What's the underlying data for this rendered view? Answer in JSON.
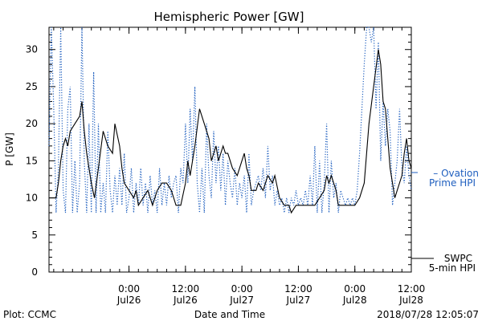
{
  "chart_data": {
    "type": "line",
    "title": "Hemispheric Power [GW]",
    "ylabel": "P [GW]",
    "xlabel": "Date and Time",
    "ylim": [
      0,
      33
    ],
    "yticks": [
      0,
      5,
      10,
      15,
      20,
      25,
      30
    ],
    "xlim": [
      "2018-07-25T07:00",
      "2018-07-28T12:00"
    ],
    "xticks": [
      {
        "t": "2018-07-26T00:00",
        "line1": "0:00",
        "line2": "Jul26"
      },
      {
        "t": "2018-07-26T12:00",
        "line1": "12:00",
        "line2": "Jul26"
      },
      {
        "t": "2018-07-27T00:00",
        "line1": "0:00",
        "line2": "Jul27"
      },
      {
        "t": "2018-07-27T12:00",
        "line1": "12:00",
        "line2": "Jul27"
      },
      {
        "t": "2018-07-28T00:00",
        "line1": "0:00",
        "line2": "Jul28"
      },
      {
        "t": "2018-07-28T12:00",
        "line1": "12:00",
        "line2": "Jul28"
      }
    ],
    "grid": false,
    "series": [
      {
        "name": "SWPC 5-min HPI",
        "label_lines": [
          "SWPC",
          "5-min HPI"
        ],
        "color": "#000000",
        "style": "solid",
        "points": [
          [
            "2018-07-25T07:00",
            10
          ],
          [
            "2018-07-25T08:30",
            10
          ],
          [
            "2018-07-25T09:00",
            12
          ],
          [
            "2018-07-25T09:30",
            15
          ],
          [
            "2018-07-25T10:00",
            17
          ],
          [
            "2018-07-25T10:30",
            18
          ],
          [
            "2018-07-25T11:00",
            17
          ],
          [
            "2018-07-25T11:30",
            19
          ],
          [
            "2018-07-25T12:30",
            20
          ],
          [
            "2018-07-25T13:30",
            21
          ],
          [
            "2018-07-25T14:00",
            23
          ],
          [
            "2018-07-25T14:30",
            19
          ],
          [
            "2018-07-25T15:00",
            16
          ],
          [
            "2018-07-25T16:00",
            12
          ],
          [
            "2018-07-25T16:40",
            10
          ],
          [
            "2018-07-25T17:30",
            14
          ],
          [
            "2018-07-25T18:30",
            19
          ],
          [
            "2018-07-25T19:30",
            17
          ],
          [
            "2018-07-25T20:30",
            16
          ],
          [
            "2018-07-25T21:00",
            20
          ],
          [
            "2018-07-25T22:00",
            17
          ],
          [
            "2018-07-25T22:30",
            14
          ],
          [
            "2018-07-25T23:00",
            12
          ],
          [
            "2018-07-26T00:00",
            11
          ],
          [
            "2018-07-26T01:00",
            10
          ],
          [
            "2018-07-26T01:30",
            11
          ],
          [
            "2018-07-26T02:00",
            9
          ],
          [
            "2018-07-26T03:00",
            10
          ],
          [
            "2018-07-26T04:00",
            11
          ],
          [
            "2018-07-26T05:00",
            9
          ],
          [
            "2018-07-26T06:00",
            11
          ],
          [
            "2018-07-26T07:00",
            12
          ],
          [
            "2018-07-26T08:00",
            12
          ],
          [
            "2018-07-26T09:00",
            11
          ],
          [
            "2018-07-26T10:00",
            9
          ],
          [
            "2018-07-26T11:00",
            9
          ],
          [
            "2018-07-26T12:00",
            12
          ],
          [
            "2018-07-26T12:30",
            15
          ],
          [
            "2018-07-26T13:00",
            13
          ],
          [
            "2018-07-26T14:00",
            17
          ],
          [
            "2018-07-26T15:00",
            22
          ],
          [
            "2018-07-26T16:00",
            20
          ],
          [
            "2018-07-26T17:00",
            18
          ],
          [
            "2018-07-26T17:30",
            15
          ],
          [
            "2018-07-26T18:30",
            17
          ],
          [
            "2018-07-26T19:00",
            15
          ],
          [
            "2018-07-26T20:00",
            17
          ],
          [
            "2018-07-26T20:30",
            16
          ],
          [
            "2018-07-26T21:00",
            16
          ],
          [
            "2018-07-26T22:00",
            14
          ],
          [
            "2018-07-26T23:00",
            13
          ],
          [
            "2018-07-27T00:00",
            15
          ],
          [
            "2018-07-27T00:30",
            16
          ],
          [
            "2018-07-27T01:00",
            14
          ],
          [
            "2018-07-27T01:30",
            13
          ],
          [
            "2018-07-27T02:00",
            11
          ],
          [
            "2018-07-27T03:00",
            11
          ],
          [
            "2018-07-27T03:30",
            12
          ],
          [
            "2018-07-27T04:30",
            11
          ],
          [
            "2018-07-27T05:30",
            13
          ],
          [
            "2018-07-27T06:30",
            12
          ],
          [
            "2018-07-27T07:00",
            13
          ],
          [
            "2018-07-27T08:00",
            10
          ],
          [
            "2018-07-27T09:00",
            9
          ],
          [
            "2018-07-27T10:00",
            9
          ],
          [
            "2018-07-27T10:30",
            8
          ],
          [
            "2018-07-27T11:30",
            9
          ],
          [
            "2018-07-27T12:30",
            9
          ],
          [
            "2018-07-27T13:30",
            9
          ],
          [
            "2018-07-27T14:30",
            9
          ],
          [
            "2018-07-27T15:30",
            9
          ],
          [
            "2018-07-27T16:30",
            10
          ],
          [
            "2018-07-27T17:30",
            11
          ],
          [
            "2018-07-27T18:00",
            13
          ],
          [
            "2018-07-27T18:30",
            12
          ],
          [
            "2018-07-27T19:00",
            13
          ],
          [
            "2018-07-27T20:00",
            11
          ],
          [
            "2018-07-27T20:30",
            9
          ],
          [
            "2018-07-27T21:30",
            9
          ],
          [
            "2018-07-27T23:00",
            9
          ],
          [
            "2018-07-28T00:00",
            9
          ],
          [
            "2018-07-28T01:00",
            10
          ],
          [
            "2018-07-28T02:00",
            12
          ],
          [
            "2018-07-28T03:00",
            20
          ],
          [
            "2018-07-28T04:00",
            25
          ],
          [
            "2018-07-28T05:00",
            30
          ],
          [
            "2018-07-28T05:30",
            28
          ],
          [
            "2018-07-28T06:00",
            23
          ],
          [
            "2018-07-28T06:30",
            22
          ],
          [
            "2018-07-28T07:00",
            18
          ],
          [
            "2018-07-28T07:30",
            14
          ],
          [
            "2018-07-28T08:00",
            12
          ],
          [
            "2018-07-28T08:30",
            10
          ],
          [
            "2018-07-28T09:00",
            11
          ],
          [
            "2018-07-28T10:00",
            13
          ],
          [
            "2018-07-28T10:30",
            16
          ],
          [
            "2018-07-28T11:00",
            18
          ],
          [
            "2018-07-28T11:30",
            15
          ],
          [
            "2018-07-28T12:00",
            14
          ]
        ]
      },
      {
        "name": "Ovation Prime HPI",
        "label_lines": [
          "– Ovation",
          "Prime HPI"
        ],
        "color": "#1f5fbf",
        "style": "dotted",
        "points": [
          [
            "2018-07-25T07:00",
            17
          ],
          [
            "2018-07-25T07:30",
            33
          ],
          [
            "2018-07-25T08:00",
            22
          ],
          [
            "2018-07-25T08:30",
            8
          ],
          [
            "2018-07-25T09:00",
            14
          ],
          [
            "2018-07-25T09:30",
            33
          ],
          [
            "2018-07-25T10:00",
            11
          ],
          [
            "2018-07-25T10:30",
            8
          ],
          [
            "2018-07-25T11:00",
            22
          ],
          [
            "2018-07-25T11:30",
            25
          ],
          [
            "2018-07-25T12:00",
            8
          ],
          [
            "2018-07-25T12:30",
            15
          ],
          [
            "2018-07-25T13:00",
            8
          ],
          [
            "2018-07-25T13:30",
            12
          ],
          [
            "2018-07-25T14:00",
            33
          ],
          [
            "2018-07-25T14:30",
            15
          ],
          [
            "2018-07-25T15:00",
            8
          ],
          [
            "2018-07-25T15:30",
            20
          ],
          [
            "2018-07-25T16:00",
            8
          ],
          [
            "2018-07-25T16:30",
            27
          ],
          [
            "2018-07-25T17:00",
            8
          ],
          [
            "2018-07-25T17:30",
            20
          ],
          [
            "2018-07-25T18:00",
            8
          ],
          [
            "2018-07-25T18:30",
            12
          ],
          [
            "2018-07-25T19:00",
            8
          ],
          [
            "2018-07-25T19:30",
            19
          ],
          [
            "2018-07-25T20:00",
            11
          ],
          [
            "2018-07-25T20:30",
            8
          ],
          [
            "2018-07-25T21:00",
            13
          ],
          [
            "2018-07-25T21:30",
            9
          ],
          [
            "2018-07-25T22:00",
            14
          ],
          [
            "2018-07-25T22:30",
            9
          ],
          [
            "2018-07-25T23:00",
            16
          ],
          [
            "2018-07-25T23:30",
            8
          ],
          [
            "2018-07-26T00:00",
            10
          ],
          [
            "2018-07-26T00:30",
            14
          ],
          [
            "2018-07-26T01:00",
            8
          ],
          [
            "2018-07-26T01:30",
            12
          ],
          [
            "2018-07-26T02:00",
            9
          ],
          [
            "2018-07-26T02:30",
            14
          ],
          [
            "2018-07-26T03:00",
            9
          ],
          [
            "2018-07-26T03:30",
            12
          ],
          [
            "2018-07-26T04:00",
            8
          ],
          [
            "2018-07-26T04:30",
            13
          ],
          [
            "2018-07-26T05:00",
            9
          ],
          [
            "2018-07-26T05:30",
            11
          ],
          [
            "2018-07-26T06:00",
            8
          ],
          [
            "2018-07-26T06:30",
            14
          ],
          [
            "2018-07-26T07:00",
            9
          ],
          [
            "2018-07-26T07:30",
            12
          ],
          [
            "2018-07-26T08:00",
            9
          ],
          [
            "2018-07-26T08:30",
            13
          ],
          [
            "2018-07-26T09:00",
            10
          ],
          [
            "2018-07-26T09:30",
            12
          ],
          [
            "2018-07-26T10:00",
            13
          ],
          [
            "2018-07-26T10:30",
            8
          ],
          [
            "2018-07-26T11:00",
            14
          ],
          [
            "2018-07-26T11:30",
            12
          ],
          [
            "2018-07-26T12:00",
            20
          ],
          [
            "2018-07-26T12:30",
            12
          ],
          [
            "2018-07-26T13:00",
            22
          ],
          [
            "2018-07-26T13:30",
            15
          ],
          [
            "2018-07-26T14:00",
            25
          ],
          [
            "2018-07-26T14:30",
            12
          ],
          [
            "2018-07-26T15:00",
            8
          ],
          [
            "2018-07-26T15:30",
            14
          ],
          [
            "2018-07-26T16:00",
            8
          ],
          [
            "2018-07-26T16:30",
            20
          ],
          [
            "2018-07-26T17:00",
            13
          ],
          [
            "2018-07-26T17:30",
            10
          ],
          [
            "2018-07-26T18:00",
            19
          ],
          [
            "2018-07-26T18:30",
            12
          ],
          [
            "2018-07-26T19:00",
            17
          ],
          [
            "2018-07-26T19:30",
            11
          ],
          [
            "2018-07-26T20:00",
            16
          ],
          [
            "2018-07-26T20:30",
            9
          ],
          [
            "2018-07-26T21:00",
            15
          ],
          [
            "2018-07-26T21:30",
            12
          ],
          [
            "2018-07-26T22:00",
            10
          ],
          [
            "2018-07-26T22:30",
            14
          ],
          [
            "2018-07-26T23:00",
            9
          ],
          [
            "2018-07-26T23:30",
            12
          ],
          [
            "2018-07-27T00:00",
            10
          ],
          [
            "2018-07-27T00:30",
            13
          ],
          [
            "2018-07-27T01:00",
            8
          ],
          [
            "2018-07-27T01:30",
            16
          ],
          [
            "2018-07-27T02:00",
            9
          ],
          [
            "2018-07-27T02:30",
            11
          ],
          [
            "2018-07-27T03:00",
            12
          ],
          [
            "2018-07-27T03:30",
            13
          ],
          [
            "2018-07-27T04:00",
            11
          ],
          [
            "2018-07-27T04:30",
            14
          ],
          [
            "2018-07-27T05:00",
            10
          ],
          [
            "2018-07-27T05:30",
            17
          ],
          [
            "2018-07-27T06:00",
            11
          ],
          [
            "2018-07-27T06:30",
            13
          ],
          [
            "2018-07-27T07:00",
            9
          ],
          [
            "2018-07-27T07:30",
            11
          ],
          [
            "2018-07-27T08:00",
            9
          ],
          [
            "2018-07-27T08:30",
            10
          ],
          [
            "2018-07-27T09:00",
            8
          ],
          [
            "2018-07-27T09:30",
            10
          ],
          [
            "2018-07-27T10:00",
            8
          ],
          [
            "2018-07-27T10:30",
            10
          ],
          [
            "2018-07-27T11:00",
            9
          ],
          [
            "2018-07-27T11:30",
            11
          ],
          [
            "2018-07-27T12:00",
            9
          ],
          [
            "2018-07-27T12:30",
            10
          ],
          [
            "2018-07-27T13:00",
            9
          ],
          [
            "2018-07-27T13:30",
            11
          ],
          [
            "2018-07-27T14:00",
            9
          ],
          [
            "2018-07-27T14:30",
            13
          ],
          [
            "2018-07-27T15:00",
            9
          ],
          [
            "2018-07-27T15:30",
            17
          ],
          [
            "2018-07-27T16:00",
            8
          ],
          [
            "2018-07-27T16:30",
            15
          ],
          [
            "2018-07-27T17:00",
            8
          ],
          [
            "2018-07-27T17:30",
            12
          ],
          [
            "2018-07-27T18:00",
            20
          ],
          [
            "2018-07-27T18:30",
            8
          ],
          [
            "2018-07-27T19:00",
            15
          ],
          [
            "2018-07-27T19:30",
            10
          ],
          [
            "2018-07-27T20:00",
            12
          ],
          [
            "2018-07-27T20:30",
            8
          ],
          [
            "2018-07-27T21:00",
            11
          ],
          [
            "2018-07-27T21:30",
            10
          ],
          [
            "2018-07-27T22:00",
            9
          ],
          [
            "2018-07-27T22:30",
            10
          ],
          [
            "2018-07-27T23:00",
            9
          ],
          [
            "2018-07-27T23:30",
            10
          ],
          [
            "2018-07-28T00:00",
            9
          ],
          [
            "2018-07-28T00:30",
            11
          ],
          [
            "2018-07-28T01:00",
            16
          ],
          [
            "2018-07-28T01:30",
            22
          ],
          [
            "2018-07-28T02:00",
            28
          ],
          [
            "2018-07-28T02:30",
            33
          ],
          [
            "2018-07-28T03:00",
            33
          ],
          [
            "2018-07-28T03:30",
            31
          ],
          [
            "2018-07-28T04:00",
            33
          ],
          [
            "2018-07-28T04:30",
            22
          ],
          [
            "2018-07-28T05:00",
            31
          ],
          [
            "2018-07-28T05:30",
            15
          ],
          [
            "2018-07-28T06:00",
            23
          ],
          [
            "2018-07-28T06:30",
            17
          ],
          [
            "2018-07-28T07:00",
            22
          ],
          [
            "2018-07-28T07:30",
            19
          ],
          [
            "2018-07-28T08:00",
            9
          ],
          [
            "2018-07-28T08:30",
            12
          ],
          [
            "2018-07-28T09:00",
            15
          ],
          [
            "2018-07-28T09:30",
            22
          ],
          [
            "2018-07-28T10:00",
            14
          ],
          [
            "2018-07-28T10:30",
            12
          ],
          [
            "2018-07-28T11:00",
            17
          ],
          [
            "2018-07-28T11:30",
            13
          ],
          [
            "2018-07-28T12:00",
            11
          ]
        ]
      }
    ]
  },
  "footer": {
    "plot_credit": "Plot: CCMC",
    "timestamp": "2018/07/28 12:05:07"
  }
}
